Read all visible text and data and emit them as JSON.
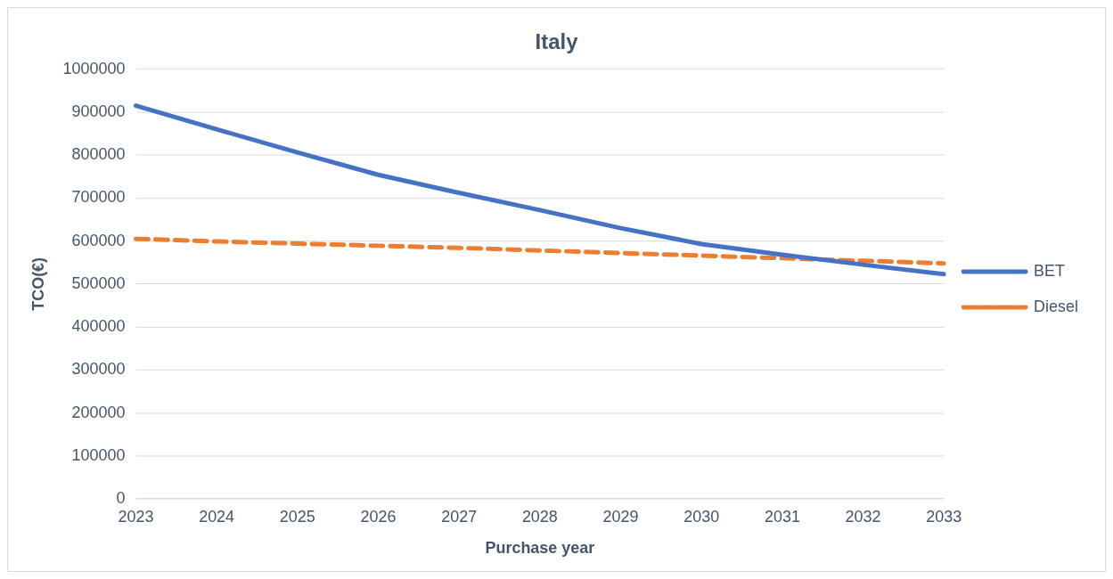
{
  "chart_data": {
    "type": "line",
    "title": "Italy",
    "xlabel": "Purchase year",
    "ylabel": "TCO(€)",
    "categories": [
      "2023",
      "2024",
      "2025",
      "2026",
      "2027",
      "2028",
      "2029",
      "2030",
      "2031",
      "2032",
      "2033"
    ],
    "series": [
      {
        "name": "BET",
        "color": "#4472c4",
        "line_style": "solid",
        "values": [
          915000,
          860000,
          806000,
          754000,
          712000,
          672000,
          630000,
          593000,
          568000,
          545000,
          523000
        ]
      },
      {
        "name": "Diesel",
        "color": "#ed7d31",
        "line_style": "dashed",
        "values": [
          605000,
          599000,
          594000,
          589000,
          584000,
          578000,
          572000,
          566000,
          560000,
          554000,
          548000
        ]
      }
    ],
    "ylim": [
      0,
      1000000
    ],
    "yticks": [
      0,
      100000,
      200000,
      300000,
      400000,
      500000,
      600000,
      700000,
      800000,
      900000,
      1000000
    ],
    "grid": "y",
    "legend": "right",
    "marker": "none"
  }
}
